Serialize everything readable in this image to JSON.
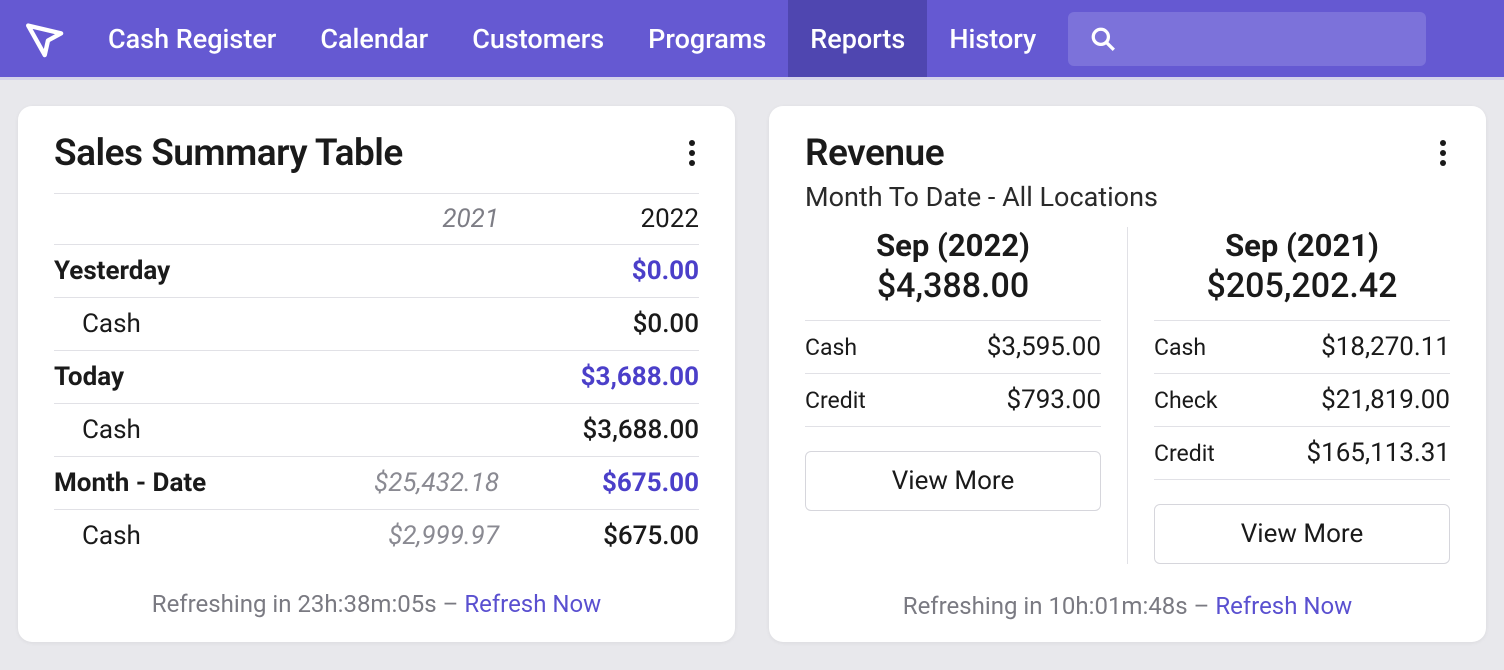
{
  "colors": {
    "navbar_bg": "#6559d2",
    "navbar_active_bg": "#4f46b0",
    "search_bg": "#7c72da",
    "page_bg": "#e8e8ec",
    "card_bg": "#ffffff",
    "border": "#e1e1e6",
    "text_primary": "#1a1a1a",
    "text_muted": "#7a7a82",
    "text_prev_italic": "#8a8a92",
    "accent": "#4b3fc9",
    "link": "#5a50d0"
  },
  "nav": {
    "items": [
      {
        "label": "Cash Register",
        "active": false
      },
      {
        "label": "Calendar",
        "active": false
      },
      {
        "label": "Customers",
        "active": false
      },
      {
        "label": "Programs",
        "active": false
      },
      {
        "label": "Reports",
        "active": true
      },
      {
        "label": "History",
        "active": false
      }
    ],
    "search_placeholder": ""
  },
  "sales_summary": {
    "title": "Sales Summary Table",
    "year_prev": "2021",
    "year_cur": "2022",
    "rows": [
      {
        "label": "Yesterday",
        "bold": true,
        "indent": false,
        "prev": "",
        "cur": "$0.00",
        "accent": true
      },
      {
        "label": "Cash",
        "bold": false,
        "indent": true,
        "prev": "",
        "cur": "$0.00",
        "accent": false
      },
      {
        "label": "Today",
        "bold": true,
        "indent": false,
        "prev": "",
        "cur": "$3,688.00",
        "accent": true
      },
      {
        "label": "Cash",
        "bold": false,
        "indent": true,
        "prev": "",
        "cur": "$3,688.00",
        "accent": false
      },
      {
        "label": "Month - Date",
        "bold": true,
        "indent": false,
        "prev": "$25,432.18",
        "cur": "$675.00",
        "accent": true
      },
      {
        "label": "Cash",
        "bold": false,
        "indent": true,
        "prev": "$2,999.97",
        "cur": "$675.00",
        "accent": false
      }
    ],
    "refresh_text": "Refreshing in 23h:38m:05s",
    "refresh_link": "Refresh Now"
  },
  "revenue": {
    "title": "Revenue",
    "subtitle": "Month To Date - All Locations",
    "columns": [
      {
        "period": "Sep (2022)",
        "total": "$4,388.00",
        "lines": [
          {
            "label": "Cash",
            "value": "$3,595.00"
          },
          {
            "label": "Credit",
            "value": "$793.00"
          }
        ],
        "view_more": "View More"
      },
      {
        "period": "Sep (2021)",
        "total": "$205,202.42",
        "lines": [
          {
            "label": "Cash",
            "value": "$18,270.11"
          },
          {
            "label": "Check",
            "value": "$21,819.00"
          },
          {
            "label": "Credit",
            "value": "$165,113.31"
          }
        ],
        "view_more": "View More"
      }
    ],
    "refresh_text": "Refreshing in 10h:01m:48s",
    "refresh_link": "Refresh Now"
  }
}
